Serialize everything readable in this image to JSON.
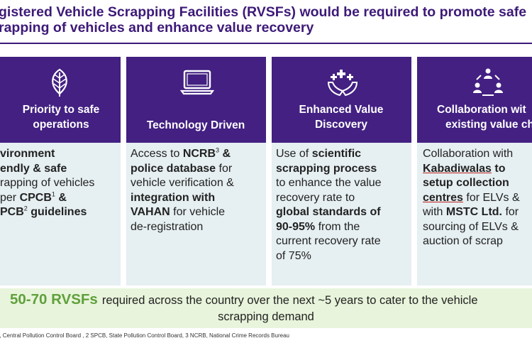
{
  "header": {
    "title_line1": "gistered Vehicle Scrapping Facilities (RVSFs) would be required to promote safe",
    "title_line2": "rapping of vehicles and enhance value recovery"
  },
  "columns": [
    {
      "icon": "leaf-icon",
      "title_line1": "Priority to safe",
      "title_line2": "operations",
      "body": {
        "l1": "vironment",
        "l2": "endly & safe",
        "l3": "rapping of vehicles",
        "l4a": " per ",
        "l4b": "CPCB",
        "l4c": "1",
        "l4d": " &",
        "l5a": "PCB",
        "l5b": "2",
        "l5c": " guidelines"
      }
    },
    {
      "icon": "laptop-icon",
      "title_line1": "Technology Driven",
      "body": {
        "l1a": "Access to ",
        "l1b": "NCRB",
        "l1c": "3",
        "l1d": " &",
        "l2a": "police database",
        "l2b": " for",
        "l3": "vehicle verification &",
        "l4": "integration with",
        "l5a": "VAHAN",
        "l5b": " for vehicle",
        "l6": "de-registration"
      }
    },
    {
      "icon": "hands-medical-icon",
      "title_line1": "Enhanced Value",
      "title_line2": "Discovery",
      "body": {
        "l1a": "Use of ",
        "l1b": "scientific",
        "l2": "scrapping process",
        "l3": "to enhance the value",
        "l4": "recovery rate to",
        "l5": "global standards of",
        "l6a": "90-95%",
        "l6b": " from the",
        "l7": "current recovery rate",
        "l8": "of 75%"
      }
    },
    {
      "icon": "people-cycle-icon",
      "title_line1": "Collaboration wit",
      "title_line2": "existing value cha",
      "body": {
        "l1": "Collaboration with",
        "l2a": "Kabadiwalas",
        "l2b": " to",
        "l3": "setup collection",
        "l4a": "centres",
        "l4b": " for ELVs &",
        "l5a": "with ",
        "l5b": "MSTC Ltd.",
        "l5c": " for",
        "l6": "sourcing of ELVs &",
        "l7": "auction of scrap"
      }
    }
  ],
  "banner": {
    "highlight": "50-70 RVSFs",
    "line1_rest": "required across the country over the next ~5 years to cater to the vehicle",
    "line2": "scrapping demand"
  },
  "footnote": "B, Central Pollution Control Board , 2 SPCB, State Pollution Control Board, 3 NCRB, National Crime Records Bureau",
  "colors": {
    "purple": "#432082",
    "title": "#3d1a78",
    "body_bg": "#e6eff1",
    "banner_bg": "#e8f4db",
    "highlight_green": "#5fa03c"
  }
}
